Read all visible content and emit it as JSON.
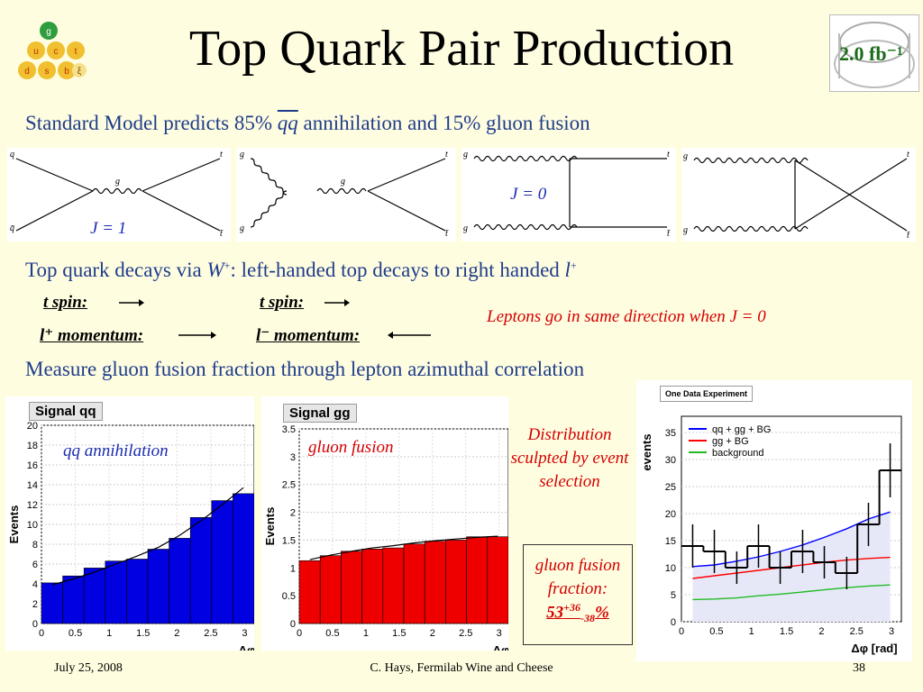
{
  "title": "Top Quark Pair Production",
  "logo_quarks": [
    "g",
    "u",
    "c",
    "t",
    "d",
    "s",
    "b",
    "ξ"
  ],
  "luminosity_badge": "2.0 fb⁻¹",
  "sm_line": {
    "prefix": "Standard Model predicts 85% ",
    "qq": "qq",
    "suffix": " annihilation and 15% gluon fusion"
  },
  "diagrams": {
    "d1": {
      "q_top": "q",
      "q_bot": "q̄",
      "g": "g",
      "t_top": "t",
      "t_bot": "t̄",
      "j": "J = 1"
    },
    "d2": {
      "g_top": "g",
      "g_bot": "g",
      "g": "g",
      "t_top": "t",
      "t_bot": "t̄"
    },
    "d3": {
      "g_top": "g",
      "g_bot": "g",
      "t_top": "t",
      "t_bot": "t̄",
      "j": "J = 0"
    },
    "d4": {
      "g_top": "g",
      "g_bot": "g",
      "t_top": "t",
      "t_bot": "t̄"
    }
  },
  "decay_line": {
    "prefix": "Top quark decays via ",
    "w": "W",
    "w_sup": "+",
    "suffix": ": left-handed top decays to right handed ",
    "l": "l",
    "l_sup": "+"
  },
  "spin": {
    "t_spin_left": "t spin:",
    "lp_momentum": "l⁺ momentum:",
    "tbar_spin": "t spin:",
    "lm_momentum": "l⁻ momentum:",
    "note": "Leptons go in same direction when J = 0"
  },
  "measure_line": "Measure gluon fusion fraction through lepton azimuthal correlation",
  "hist_qq": {
    "title": "Signal qq",
    "label": "qq annihilation",
    "ylabel": "Events",
    "xlabel": "Δφ"
  },
  "hist_gg": {
    "title": "Signal gg",
    "label": "gluon fusion",
    "ylabel": "Events",
    "xlabel": "Δφ"
  },
  "data_plot": {
    "title": "One Data Experiment",
    "ylabel": "events",
    "xlabel": "Δφ [rad]",
    "legend": [
      "qq + gg + BG",
      "gg + BG",
      "background"
    ]
  },
  "notes": {
    "sculpted": "Distribution sculpted by event selection",
    "fraction_label": "gluon fusion fraction:",
    "fraction_value": "53",
    "fraction_up": "+36",
    "fraction_down": "-38",
    "fraction_unit": "%"
  },
  "footer": {
    "date": "July 25, 2008",
    "center": "C. Hays, Fermilab Wine and Cheese",
    "page": "38"
  },
  "chart_data": [
    {
      "type": "bar",
      "title": "Signal qq",
      "xlabel": "Δφ",
      "ylabel": "Events",
      "x_bin_centers": [
        0.16,
        0.47,
        0.79,
        1.1,
        1.41,
        1.73,
        2.04,
        2.36,
        2.67,
        2.98
      ],
      "values": [
        4.1,
        4.8,
        5.6,
        6.3,
        6.5,
        7.5,
        8.6,
        10.7,
        12.4,
        13.1
      ],
      "fit_curve": [
        3.9,
        4.5,
        5.2,
        6.0,
        6.8,
        7.7,
        8.9,
        10.4,
        12.0,
        13.7
      ],
      "ylim": [
        0,
        20
      ],
      "xlim": [
        0,
        3.14
      ],
      "color": "#0000e0"
    },
    {
      "type": "bar",
      "title": "Signal gg",
      "xlabel": "Δφ",
      "ylabel": "Events",
      "x_bin_centers": [
        0.16,
        0.47,
        0.79,
        1.1,
        1.41,
        1.73,
        2.04,
        2.36,
        2.67,
        2.98
      ],
      "values": [
        1.13,
        1.22,
        1.3,
        1.34,
        1.36,
        1.43,
        1.48,
        1.5,
        1.56,
        1.56
      ],
      "fit_curve": [
        1.15,
        1.23,
        1.3,
        1.36,
        1.4,
        1.45,
        1.49,
        1.52,
        1.55,
        1.57
      ],
      "ylim": [
        0,
        3.5
      ],
      "xlim": [
        0,
        3.14
      ],
      "color": "#ee0000"
    },
    {
      "type": "line",
      "title": "One Data Experiment",
      "xlabel": "Δφ [rad]",
      "ylabel": "events",
      "ylim": [
        0,
        38
      ],
      "xlim": [
        0,
        3.14
      ],
      "data_x": [
        0.16,
        0.47,
        0.79,
        1.1,
        1.41,
        1.73,
        2.04,
        2.36,
        2.67,
        2.98
      ],
      "data_y": [
        14,
        13,
        10,
        14,
        10,
        13,
        11,
        9,
        18,
        28
      ],
      "data_err": [
        4,
        4,
        3,
        4,
        3,
        4,
        3,
        3,
        4,
        5
      ],
      "series": [
        {
          "name": "qq + gg + BG",
          "color": "#0000ff",
          "values": [
            10.2,
            10.5,
            11.2,
            12.0,
            13.0,
            14.2,
            15.6,
            17.2,
            19.0,
            20.3
          ]
        },
        {
          "name": "gg + BG",
          "color": "#ff0000",
          "values": [
            8.0,
            8.5,
            9.0,
            9.5,
            10.0,
            10.5,
            11.0,
            11.4,
            11.7,
            11.9
          ]
        },
        {
          "name": "background",
          "color": "#22bb22",
          "values": [
            4.1,
            4.2,
            4.4,
            4.8,
            5.1,
            5.5,
            5.9,
            6.3,
            6.6,
            6.8
          ]
        }
      ]
    }
  ]
}
